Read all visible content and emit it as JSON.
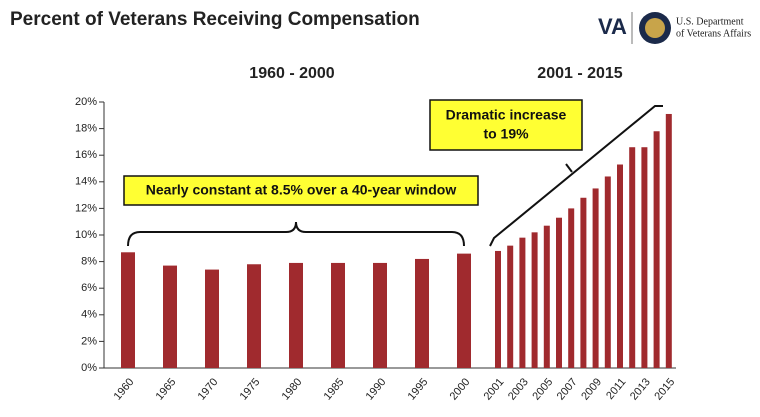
{
  "chart_data": {
    "type": "bar",
    "title": "Percent of Veterans Receiving Compensation",
    "logo": {
      "abbr": "VA",
      "lines": [
        "U.S. Department",
        "of Veterans Affairs"
      ]
    },
    "period_labels": [
      "1960 - 2000",
      "2001 - 2015"
    ],
    "annotations": [
      [
        "Nearly constant at 8.5% over a 40-year window"
      ],
      [
        "Dramatic increase",
        "to 19%"
      ]
    ],
    "categories": [
      "1960",
      "1965",
      "1970",
      "1975",
      "1980",
      "1985",
      "1990",
      "1995",
      "2000",
      "2001",
      null,
      "2003",
      null,
      "2005",
      null,
      "2007",
      null,
      "2009",
      null,
      "2011",
      null,
      "2013",
      null,
      "2015"
    ],
    "values": [
      8.7,
      7.7,
      7.4,
      7.8,
      7.9,
      7.9,
      7.9,
      8.2,
      8.6,
      8.8,
      9.2,
      9.8,
      10.2,
      10.7,
      11.3,
      12.0,
      12.8,
      13.5,
      14.4,
      15.3,
      16.6,
      16.6,
      17.8,
      19.1
    ],
    "color": "#a02a2e",
    "ylim": [
      0,
      20
    ],
    "yticks": [
      {
        "value": 0,
        "label": "0%"
      },
      {
        "value": 2,
        "label": "2%"
      },
      {
        "value": 4,
        "label": "4%"
      },
      {
        "value": 6,
        "label": "6%"
      },
      {
        "value": 8,
        "label": "8%"
      },
      {
        "value": 10,
        "label": "10%"
      },
      {
        "value": 12,
        "label": "12%"
      },
      {
        "value": 14,
        "label": "14%"
      },
      {
        "value": 16,
        "label": "16%"
      },
      {
        "value": 18,
        "label": "18%"
      },
      {
        "value": 20,
        "label": "20%"
      }
    ],
    "grid": false
  }
}
